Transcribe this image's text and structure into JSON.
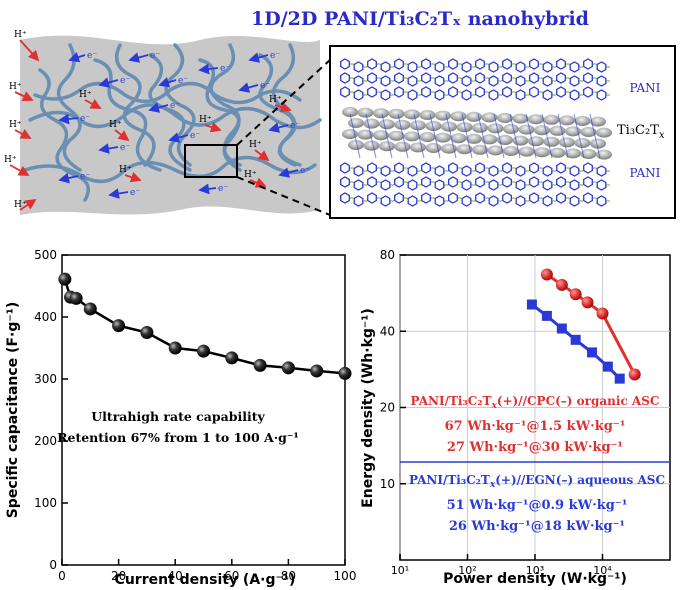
{
  "title": "1D/2D PANI/Ti₃C₂Tₓ nanohybrid",
  "schematic": {
    "ion_label": "H⁺",
    "electron_label": "e⁻",
    "inset_labels": {
      "top": "PANI",
      "middle_base": "Ti₃C₂T",
      "middle_sub": "x",
      "bottom": "PANI"
    }
  },
  "colors": {
    "title": "#2a2ac8",
    "ion_arrow": "#e03030",
    "electron_arrow": "#2a3ad8",
    "fiber": "#6a8fb3",
    "sheet": "#c8c8c8",
    "series_organic": "#e03030",
    "series_aqueous": "#2a3ad8"
  },
  "chart_data": [
    {
      "type": "line",
      "marker": "circle",
      "xlabel": "Current density (A·g⁻¹)",
      "ylabel": "Specific capacitance (F·g⁻¹)",
      "xlim": [
        0,
        100
      ],
      "ylim": [
        0,
        500
      ],
      "xticks": [
        "0",
        "20",
        "40",
        "60",
        "80",
        "100"
      ],
      "yticks": [
        "0",
        "100",
        "200",
        "300",
        "400",
        "500"
      ],
      "x": [
        1,
        3,
        5,
        10,
        20,
        30,
        40,
        50,
        60,
        70,
        80,
        90,
        100
      ],
      "y": [
        461,
        432,
        430,
        413,
        386,
        375,
        350,
        345,
        334,
        322,
        318,
        313,
        309
      ],
      "annotation": [
        "Ultrahigh rate capability",
        "Retention 67% from 1 to 100 A·g⁻¹"
      ]
    },
    {
      "type": "line",
      "scale": "log-log",
      "grid": true,
      "xlabel": "Power density (W·kg⁻¹)",
      "ylabel": "Energy density (Wh·kg⁻¹)",
      "xlim": [
        10,
        100000
      ],
      "ylim": [
        5,
        80
      ],
      "xticks": [
        "10¹",
        "10²",
        "10³",
        "10⁴"
      ],
      "yticks": [
        "10",
        "20",
        "40",
        "80"
      ],
      "series": [
        {
          "marker": "circle",
          "x": [
            1500,
            2500,
            4000,
            6000,
            10000,
            30000
          ],
          "y": [
            67,
            61,
            56,
            52,
            47,
            27
          ]
        },
        {
          "marker": "square",
          "x": [
            900,
            1500,
            2500,
            4000,
            7000,
            12000,
            18000
          ],
          "y": [
            51,
            46,
            41,
            37,
            33,
            29,
            26
          ]
        }
      ],
      "legend": {
        "organic": {
          "head": "PANI/Ti₃C₂T",
          "sub": "x",
          "tail": "(+)//CPC(–) organic ASC",
          "lines": [
            "67 Wh·kg⁻¹@1.5 kW·kg⁻¹",
            "27 Wh·kg⁻¹@30 kW·kg⁻¹"
          ]
        },
        "aqueous": {
          "head": "PANI/Ti₃C₂T",
          "sub": "x",
          "tail": "(+)//EGN(–) aqueous ASC",
          "lines": [
            "51 Wh·kg⁻¹@0.9 kW·kg⁻¹",
            "26 Wh·kg⁻¹@18 kW·kg⁻¹"
          ]
        }
      }
    }
  ]
}
